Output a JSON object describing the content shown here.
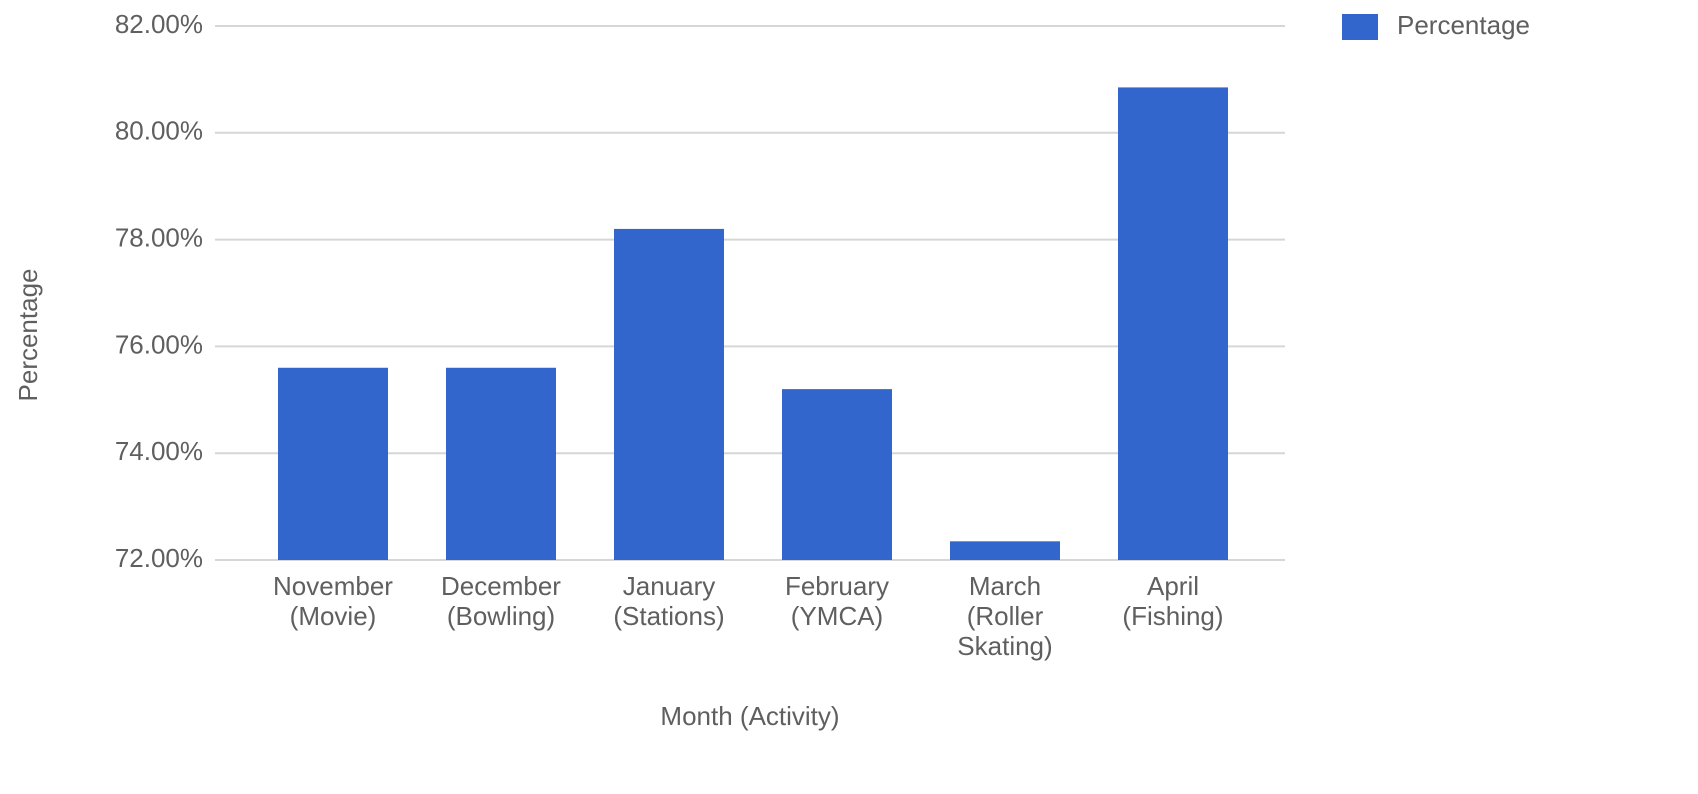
{
  "chart_data": {
    "type": "bar",
    "x_label": "Month (Activity)",
    "y_label": "Percentage",
    "categories": [
      [
        "November",
        "(Movie)"
      ],
      [
        "December",
        "(Bowling)"
      ],
      [
        "January",
        "(Stations)"
      ],
      [
        "February",
        "(YMCA)"
      ],
      [
        "March",
        "(Roller",
        "Skating)"
      ],
      [
        "April",
        "(Fishing)"
      ]
    ],
    "series": [
      {
        "name": "Percentage",
        "color": "#3366cc",
        "values": [
          75.6,
          75.6,
          78.2,
          75.2,
          72.35,
          80.85
        ]
      }
    ],
    "ylim": [
      72,
      82
    ],
    "yticks": [
      {
        "value": 72,
        "label": "72.00%"
      },
      {
        "value": 74,
        "label": "74.00%"
      },
      {
        "value": 76,
        "label": "76.00%"
      },
      {
        "value": 78,
        "label": "78.00%"
      },
      {
        "value": 80,
        "label": "80.00%"
      },
      {
        "value": 82,
        "label": "82.00%"
      }
    ],
    "grid": true,
    "legend": "top-right"
  }
}
